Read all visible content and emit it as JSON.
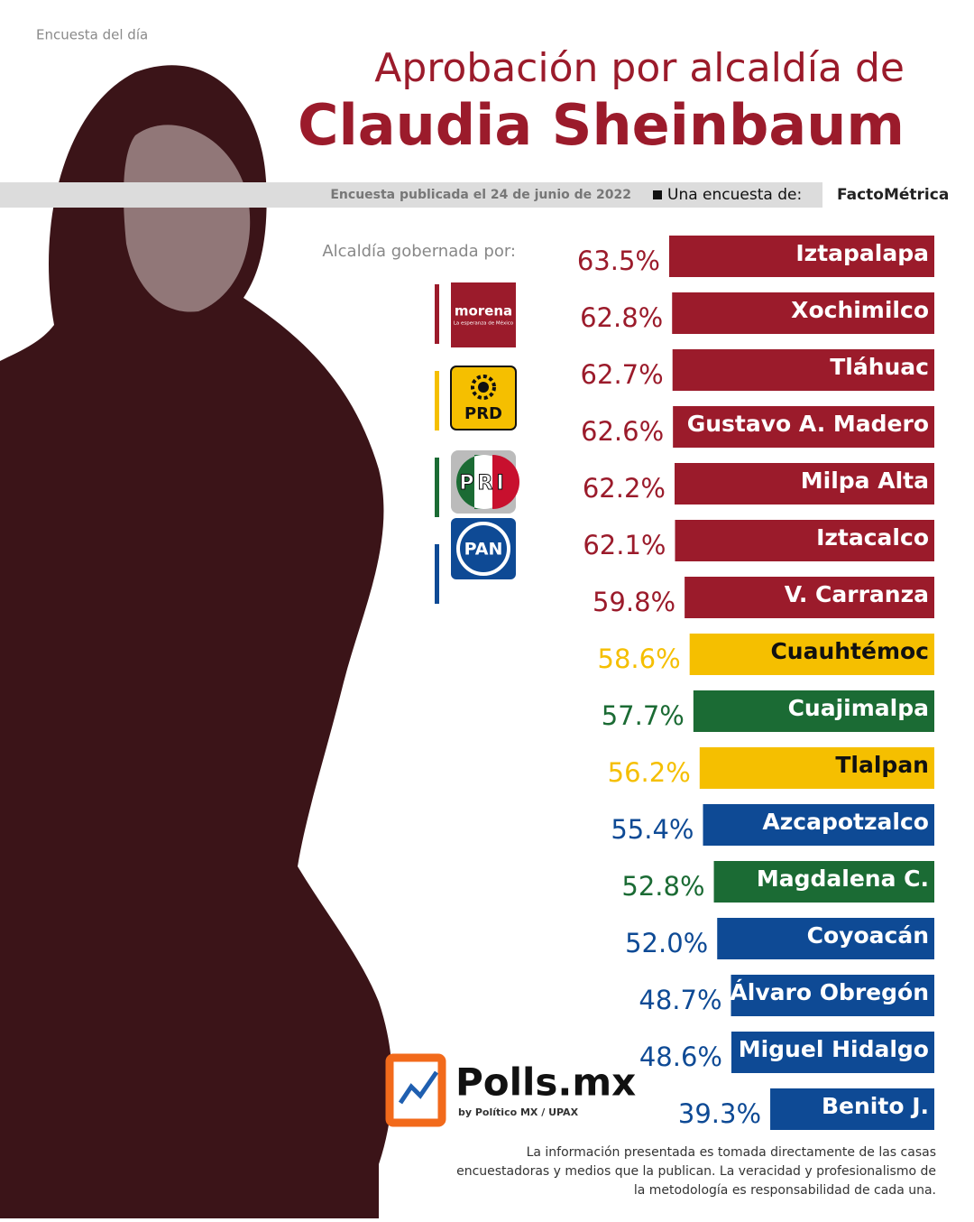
{
  "header": {
    "kicker": "Encuesta del día",
    "title_line1": "Aprobación por alcaldía de",
    "title_line2": "Claudia Sheinbaum",
    "published": "Encuesta publicada el 24 de junio de 2022",
    "by_label": "Una encuesta de:",
    "pollster": "FactoMétrica"
  },
  "legend": {
    "title": "Alcaldía gobernada por:",
    "items": [
      {
        "name": "morena",
        "tagline": "La esperanza de México",
        "color": "#9b1b2b"
      },
      {
        "name": "PRD",
        "color": "#f5bf00"
      },
      {
        "name": "PRI",
        "color": "#1b6b34"
      },
      {
        "name": "PAN",
        "color": "#0e4a95"
      }
    ]
  },
  "chart_data": {
    "type": "bar",
    "orientation": "horizontal",
    "categories": [
      "Iztapalapa",
      "Xochimilco",
      "Tláhuac",
      "Gustavo A. Madero",
      "Milpa Alta",
      "Iztacalco",
      "V. Carranza",
      "Cuauhtémoc",
      "Cuajimalpa",
      "Tlalpan",
      "Azcapotzalco",
      "Magdalena C.",
      "Coyoacán",
      "Álvaro Obregón",
      "Miguel Hidalgo",
      "Benito J."
    ],
    "values": [
      63.5,
      62.8,
      62.7,
      62.6,
      62.2,
      62.1,
      59.8,
      58.6,
      57.7,
      56.2,
      55.4,
      52.8,
      52.0,
      48.7,
      48.6,
      39.3
    ],
    "value_labels": [
      "63.5%",
      "62.8%",
      "62.7%",
      "62.6%",
      "62.2%",
      "62.1%",
      "59.8%",
      "58.6%",
      "57.7%",
      "56.2%",
      "55.4%",
      "52.8%",
      "52.0%",
      "48.7%",
      "48.6%",
      "39.3%"
    ],
    "colors": [
      "#9b1b2b",
      "#9b1b2b",
      "#9b1b2b",
      "#9b1b2b",
      "#9b1b2b",
      "#9b1b2b",
      "#9b1b2b",
      "#f5bf00",
      "#1b6b34",
      "#f5bf00",
      "#0e4a95",
      "#1b6b34",
      "#0e4a95",
      "#0e4a95",
      "#0e4a95",
      "#0e4a95"
    ]
  },
  "branding": {
    "name": "Polls.mx",
    "byline": "by Político MX / UPAX"
  },
  "footnote": [
    "La información presentada es tomada directamente de las casas",
    "encuestadoras y medios que la publican. La veracidad y profesionalismo de",
    "la metodología es responsabilidad de cada una."
  ]
}
